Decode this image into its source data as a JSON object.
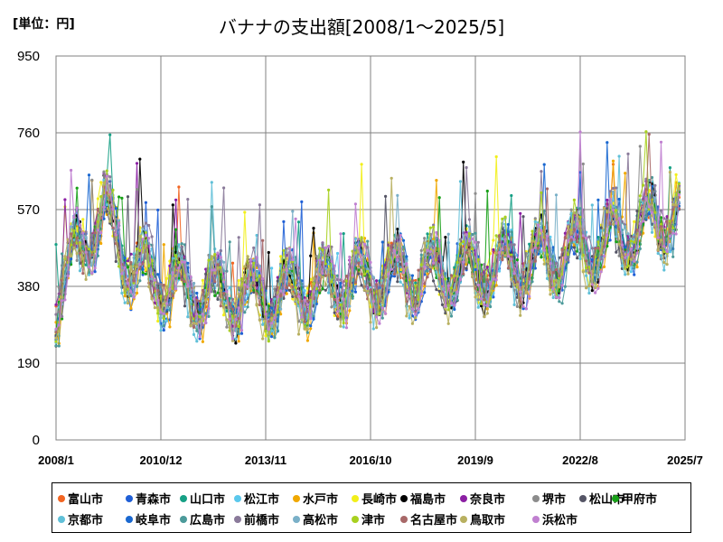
{
  "chart_data": {
    "type": "line",
    "title": "バナナの支出額[2008/1～2025/5]",
    "unit_label": "[単位：円]",
    "xlabel": "",
    "ylabel": "",
    "ylim": [
      0,
      950
    ],
    "yticks": [
      0,
      190,
      380,
      570,
      760,
      950
    ],
    "xtick_labels": [
      "2008/1",
      "2010/12",
      "2013/11",
      "2016/10",
      "2019/9",
      "2022/8",
      "2025/7"
    ],
    "x_range": [
      "2008/1",
      "2025/7"
    ],
    "grid": true,
    "legend_position": "bottom",
    "series": [
      {
        "name": "富山市",
        "color": "#f26522"
      },
      {
        "name": "青森市",
        "color": "#1f5fd6"
      },
      {
        "name": "山口市",
        "color": "#16a085"
      },
      {
        "name": "松江市",
        "color": "#5bc8ec"
      },
      {
        "name": "水戸市",
        "color": "#f0a800"
      },
      {
        "name": "長崎市",
        "color": "#f2ef1a"
      },
      {
        "name": "福島市",
        "color": "#000000"
      },
      {
        "name": "奈良市",
        "color": "#8b1fa3"
      },
      {
        "name": "堺市",
        "color": "#8c8c8c"
      },
      {
        "name": "松山市",
        "color": "#555566"
      },
      {
        "name": "甲府市",
        "color": "#18a018"
      },
      {
        "name": "京都市",
        "color": "#60c0d8"
      },
      {
        "name": "岐阜市",
        "color": "#1a68d0"
      },
      {
        "name": "広島市",
        "color": "#4c9a9a"
      },
      {
        "name": "前橋市",
        "color": "#8a7a9a"
      },
      {
        "name": "高松市",
        "color": "#7ab0c8"
      },
      {
        "name": "津市",
        "color": "#a8d020"
      },
      {
        "name": "名古屋市",
        "color": "#a86868"
      },
      {
        "name": "鳥取市",
        "color": "#b8b060"
      },
      {
        "name": "浜松市",
        "color": "#c080d0"
      }
    ],
    "trend": [
      {
        "x": "2008/1",
        "y": 330
      },
      {
        "x": "2008/9",
        "y": 480
      },
      {
        "x": "2009/5",
        "y": 560
      },
      {
        "x": "2010/3",
        "y": 420
      },
      {
        "x": "2011/6",
        "y": 370
      },
      {
        "x": "2014/1",
        "y": 350
      },
      {
        "x": "2016/1",
        "y": 390
      },
      {
        "x": "2019/1",
        "y": 410
      },
      {
        "x": "2022/1",
        "y": 450
      },
      {
        "x": "2025/5",
        "y": 560
      }
    ]
  }
}
